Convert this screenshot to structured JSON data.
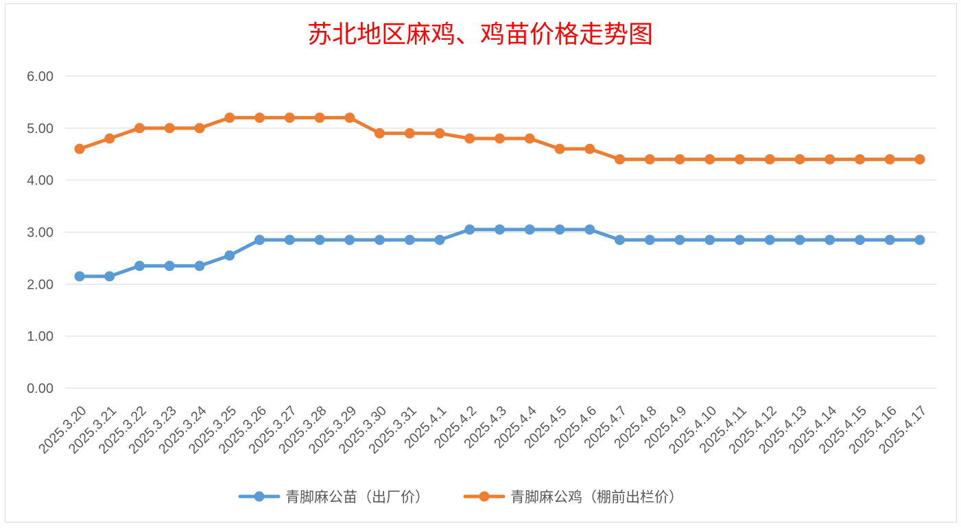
{
  "chart_data": {
    "type": "line",
    "title": "苏北地区麻鸡、鸡苗价格走势图",
    "xlabel": "",
    "ylabel": "",
    "ylim": [
      0,
      6
    ],
    "yticks": [
      "0.00",
      "1.00",
      "2.00",
      "3.00",
      "4.00",
      "5.00",
      "6.00"
    ],
    "grid": true,
    "legend_position": "bottom",
    "categories": [
      "2025.3.20",
      "2025.3.21",
      "2025.3.22",
      "2025.3.23",
      "2025.3.24",
      "2025.3.25",
      "2025.3.26",
      "2025.3.27",
      "2025.3.28",
      "2025.3.29",
      "2025.3.30",
      "2025.3.31",
      "2025.4.1",
      "2025.4.2",
      "2025.4.3",
      "2025.4.4",
      "2025.4.5",
      "2025.4.6",
      "2025.4.7",
      "2025.4.8",
      "2025.4.9",
      "2025.4.10",
      "2025.4.11",
      "2025.4.12",
      "2025.4.13",
      "2025.4.14",
      "2025.4.15",
      "2025.4.16",
      "2025.4.17"
    ],
    "series": [
      {
        "name": "青脚麻公苗（出厂价）",
        "color": "#5b9bd5",
        "values": [
          2.15,
          2.15,
          2.35,
          2.35,
          2.35,
          2.55,
          2.85,
          2.85,
          2.85,
          2.85,
          2.85,
          2.85,
          2.85,
          3.05,
          3.05,
          3.05,
          3.05,
          3.05,
          2.85,
          2.85,
          2.85,
          2.85,
          2.85,
          2.85,
          2.85,
          2.85,
          2.85,
          2.85,
          2.85
        ]
      },
      {
        "name": "青脚麻公鸡（棚前出栏价）",
        "color": "#ed7d31",
        "values": [
          4.6,
          4.8,
          5.0,
          5.0,
          5.0,
          5.2,
          5.2,
          5.2,
          5.2,
          5.2,
          4.9,
          4.9,
          4.9,
          4.8,
          4.8,
          4.8,
          4.6,
          4.6,
          4.4,
          4.4,
          4.4,
          4.4,
          4.4,
          4.4,
          4.4,
          4.4,
          4.4,
          4.4,
          4.4
        ]
      }
    ]
  }
}
